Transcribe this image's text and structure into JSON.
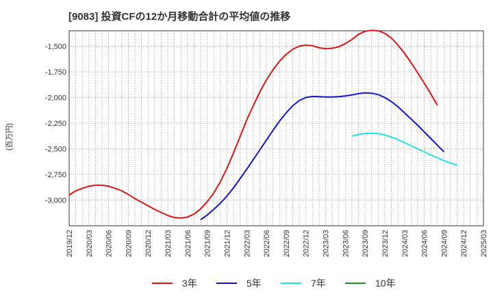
{
  "chart_data": {
    "type": "line",
    "title": "[9083]  投資CFの12か月移動合計の平均値の推移",
    "ylabel": "(百万円)",
    "xlabel": "",
    "ylim": [
      -3250,
      -1350
    ],
    "yticks": [
      -1500,
      -1750,
      -2000,
      -2250,
      -2500,
      -2750,
      -3000
    ],
    "ytick_labels": [
      "-1,500",
      "-1,750",
      "-2,000",
      "-2,250",
      "-2,500",
      "-2,750",
      "-3,000"
    ],
    "xticks": [
      "2019/12",
      "2020/03",
      "2020/06",
      "2020/09",
      "2020/12",
      "2021/03",
      "2021/06",
      "2021/09",
      "2021/12",
      "2022/03",
      "2022/06",
      "2022/09",
      "2022/12",
      "2023/03",
      "2023/06",
      "2023/09",
      "2023/12",
      "2024/03",
      "2024/06",
      "2024/09",
      "2024/12",
      "2025/03"
    ],
    "grid": true,
    "legend_position": "bottom",
    "series": [
      {
        "name": "3年",
        "color": "#dd1111",
        "points": [
          [
            "2019/12",
            -2950
          ],
          [
            "2020/01",
            -2910
          ],
          [
            "2020/02",
            -2885
          ],
          [
            "2020/03",
            -2865
          ],
          [
            "2020/04",
            -2855
          ],
          [
            "2020/05",
            -2855
          ],
          [
            "2020/06",
            -2865
          ],
          [
            "2020/07",
            -2885
          ],
          [
            "2020/08",
            -2910
          ],
          [
            "2020/09",
            -2945
          ],
          [
            "2020/10",
            -2985
          ],
          [
            "2020/11",
            -3020
          ],
          [
            "2020/12",
            -3055
          ],
          [
            "2021/01",
            -3090
          ],
          [
            "2021/02",
            -3120
          ],
          [
            "2021/03",
            -3150
          ],
          [
            "2021/04",
            -3170
          ],
          [
            "2021/05",
            -3175
          ],
          [
            "2021/06",
            -3165
          ],
          [
            "2021/07",
            -3135
          ],
          [
            "2021/08",
            -3085
          ],
          [
            "2021/09",
            -3015
          ],
          [
            "2021/10",
            -2930
          ],
          [
            "2021/11",
            -2820
          ],
          [
            "2021/12",
            -2690
          ],
          [
            "2022/01",
            -2540
          ],
          [
            "2022/02",
            -2380
          ],
          [
            "2022/03",
            -2220
          ],
          [
            "2022/04",
            -2080
          ],
          [
            "2022/05",
            -1945
          ],
          [
            "2022/06",
            -1830
          ],
          [
            "2022/07",
            -1730
          ],
          [
            "2022/08",
            -1645
          ],
          [
            "2022/09",
            -1580
          ],
          [
            "2022/10",
            -1530
          ],
          [
            "2022/11",
            -1500
          ],
          [
            "2022/12",
            -1490
          ],
          [
            "2023/01",
            -1495
          ],
          [
            "2023/02",
            -1515
          ],
          [
            "2023/03",
            -1525
          ],
          [
            "2023/04",
            -1520
          ],
          [
            "2023/05",
            -1505
          ],
          [
            "2023/06",
            -1475
          ],
          [
            "2023/07",
            -1435
          ],
          [
            "2023/08",
            -1385
          ],
          [
            "2023/09",
            -1355
          ],
          [
            "2023/10",
            -1345
          ],
          [
            "2023/11",
            -1350
          ],
          [
            "2023/12",
            -1375
          ],
          [
            "2024/01",
            -1420
          ],
          [
            "2024/02",
            -1490
          ],
          [
            "2024/03",
            -1570
          ],
          [
            "2024/04",
            -1660
          ],
          [
            "2024/05",
            -1760
          ],
          [
            "2024/06",
            -1860
          ],
          [
            "2024/07",
            -1965
          ],
          [
            "2024/08",
            -2075
          ]
        ]
      },
      {
        "name": "5年",
        "color": "#1111cc",
        "points": [
          [
            "2021/08",
            -3190
          ],
          [
            "2021/09",
            -3145
          ],
          [
            "2021/10",
            -3090
          ],
          [
            "2021/11",
            -3030
          ],
          [
            "2021/12",
            -2960
          ],
          [
            "2022/01",
            -2880
          ],
          [
            "2022/02",
            -2790
          ],
          [
            "2022/03",
            -2700
          ],
          [
            "2022/04",
            -2605
          ],
          [
            "2022/05",
            -2510
          ],
          [
            "2022/06",
            -2415
          ],
          [
            "2022/07",
            -2320
          ],
          [
            "2022/08",
            -2230
          ],
          [
            "2022/09",
            -2150
          ],
          [
            "2022/10",
            -2080
          ],
          [
            "2022/11",
            -2030
          ],
          [
            "2022/12",
            -2000
          ],
          [
            "2023/01",
            -1990
          ],
          [
            "2023/02",
            -1992
          ],
          [
            "2023/03",
            -1995
          ],
          [
            "2023/04",
            -1995
          ],
          [
            "2023/05",
            -1992
          ],
          [
            "2023/06",
            -1985
          ],
          [
            "2023/07",
            -1975
          ],
          [
            "2023/08",
            -1962
          ],
          [
            "2023/09",
            -1955
          ],
          [
            "2023/10",
            -1958
          ],
          [
            "2023/11",
            -1972
          ],
          [
            "2023/12",
            -2000
          ],
          [
            "2024/01",
            -2040
          ],
          [
            "2024/02",
            -2090
          ],
          [
            "2024/03",
            -2150
          ],
          [
            "2024/04",
            -2210
          ],
          [
            "2024/05",
            -2270
          ],
          [
            "2024/06",
            -2335
          ],
          [
            "2024/07",
            -2400
          ],
          [
            "2024/08",
            -2465
          ],
          [
            "2024/09",
            -2530
          ]
        ]
      },
      {
        "name": "7年",
        "color": "#22e0e8",
        "points": [
          [
            "2023/07",
            -2375
          ],
          [
            "2023/08",
            -2360
          ],
          [
            "2023/09",
            -2350
          ],
          [
            "2023/10",
            -2348
          ],
          [
            "2023/11",
            -2352
          ],
          [
            "2023/12",
            -2365
          ],
          [
            "2024/01",
            -2385
          ],
          [
            "2024/02",
            -2410
          ],
          [
            "2024/03",
            -2440
          ],
          [
            "2024/04",
            -2470
          ],
          [
            "2024/05",
            -2500
          ],
          [
            "2024/06",
            -2530
          ],
          [
            "2024/07",
            -2560
          ],
          [
            "2024/08",
            -2588
          ],
          [
            "2024/09",
            -2615
          ],
          [
            "2024/10",
            -2640
          ],
          [
            "2024/11",
            -2660
          ]
        ]
      },
      {
        "name": "10年",
        "color": "#228822",
        "points": []
      }
    ]
  }
}
